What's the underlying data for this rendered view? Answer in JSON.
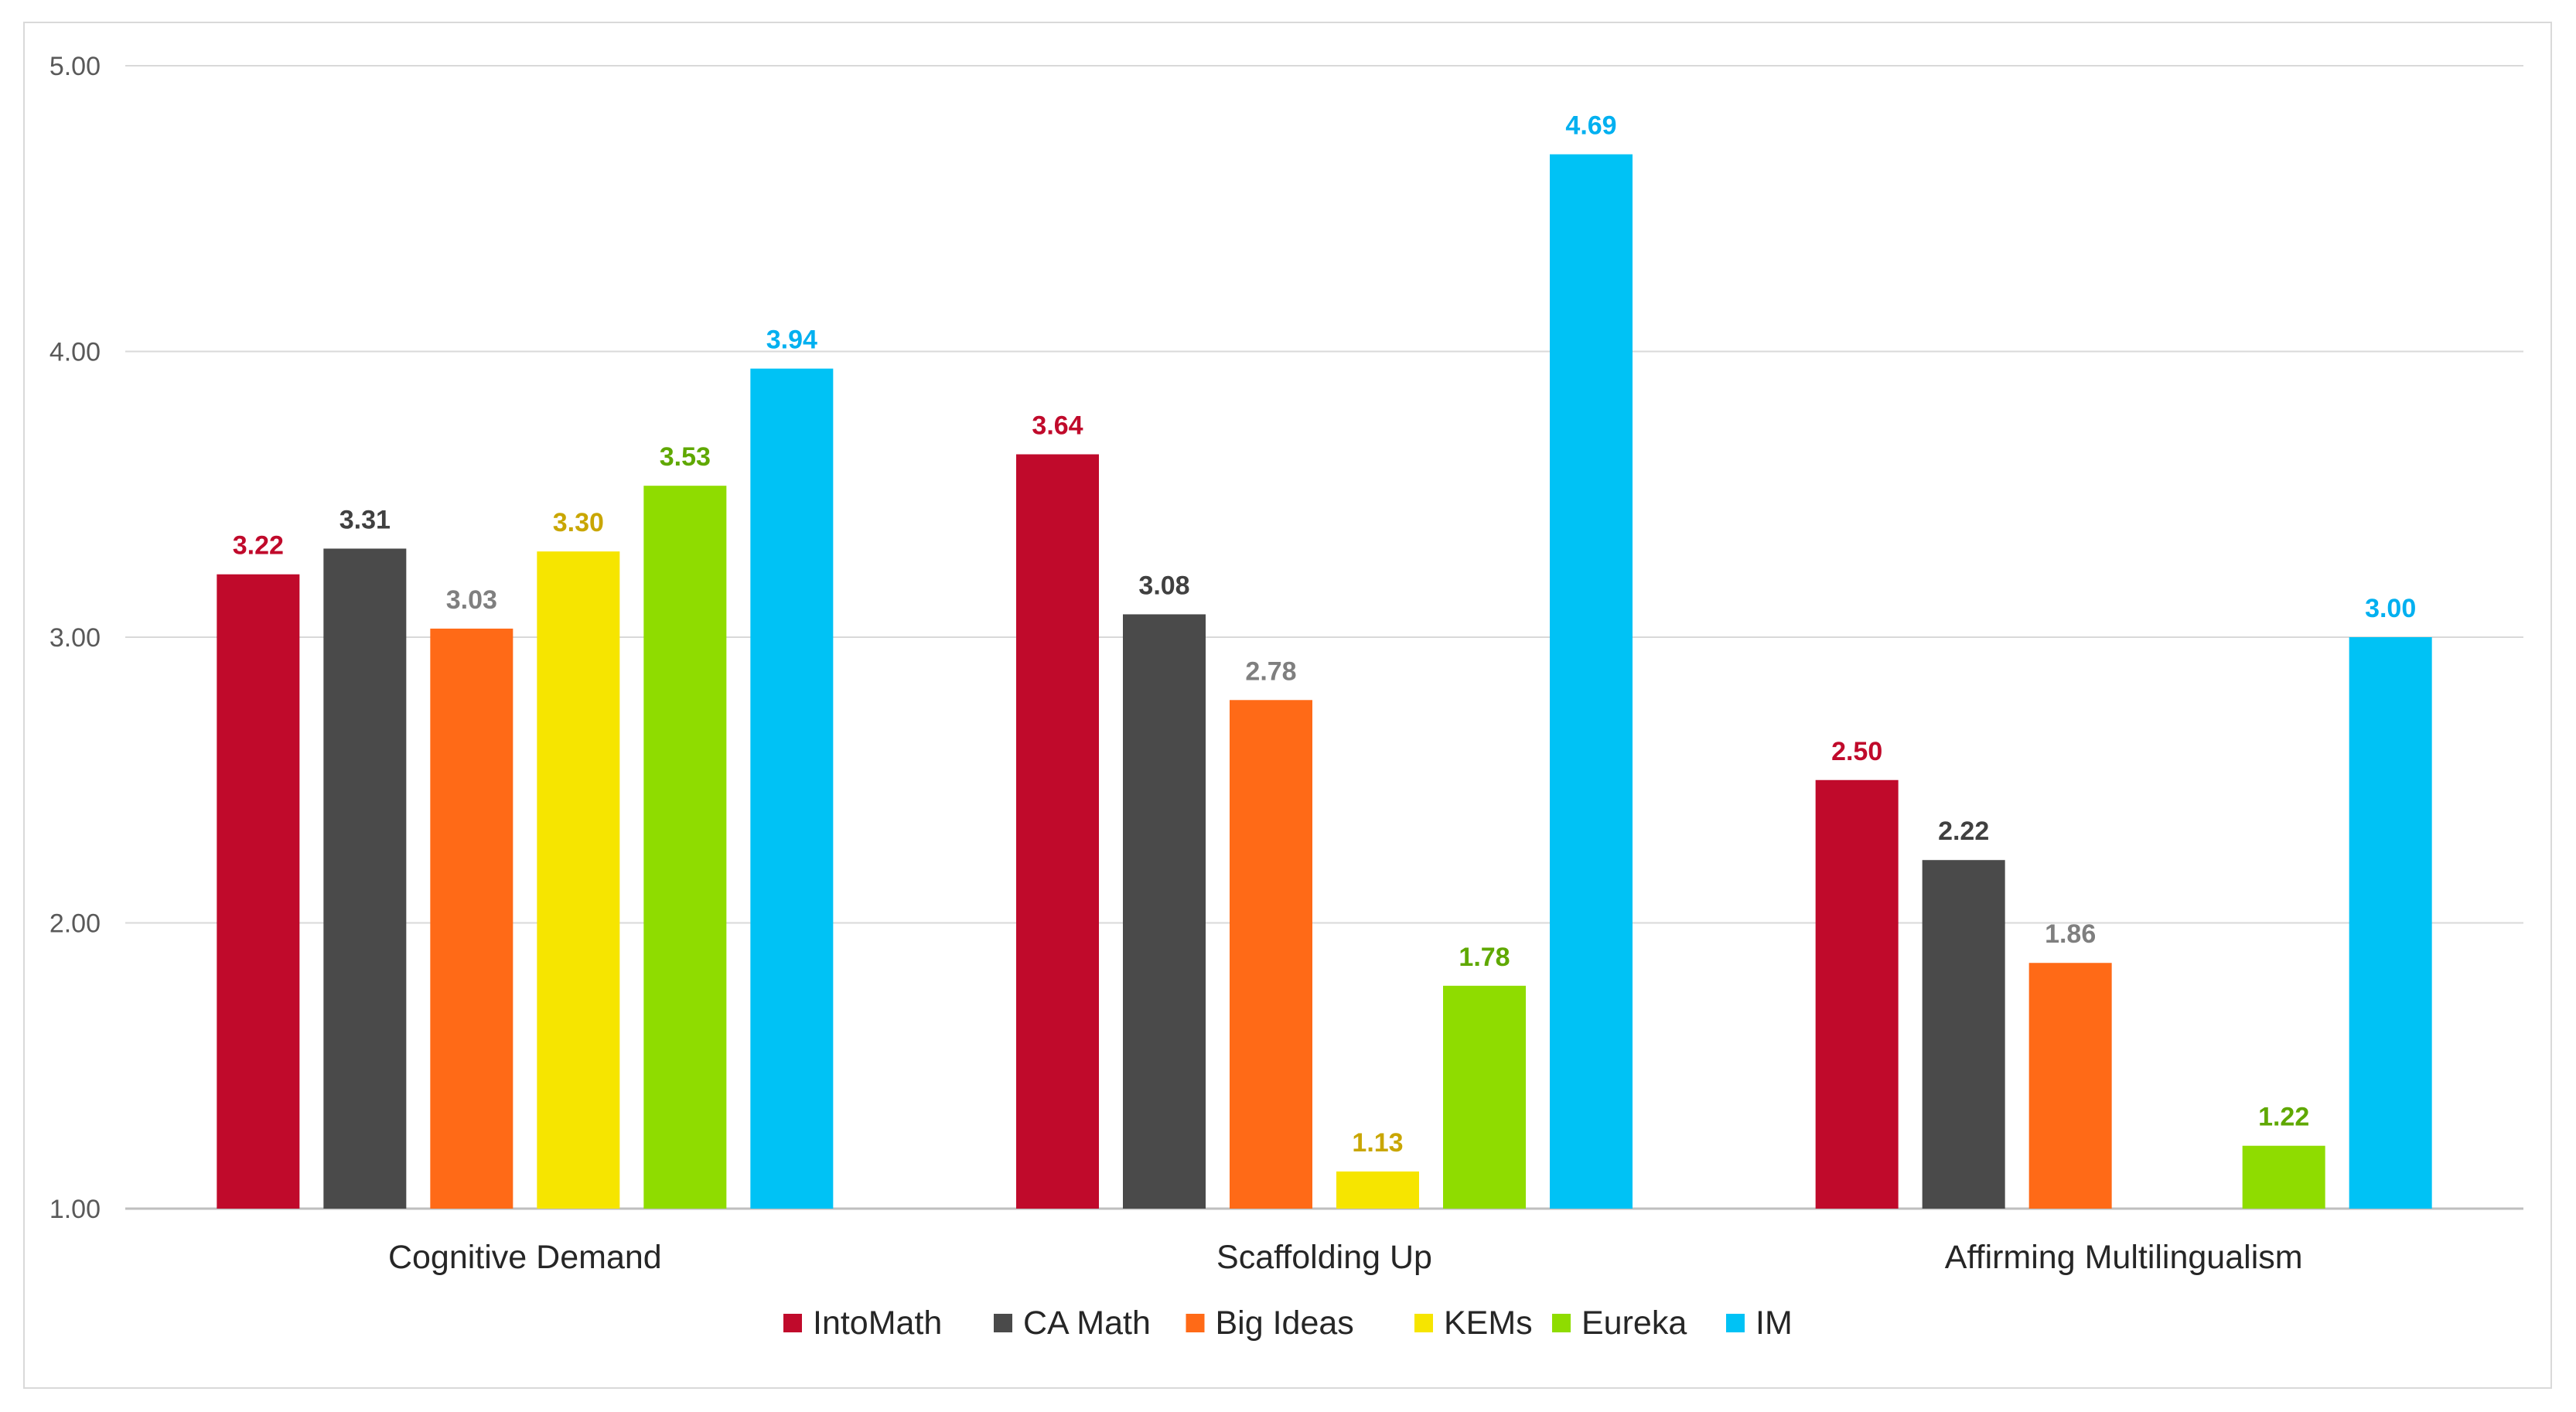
{
  "chart_data": {
    "type": "bar",
    "title": "",
    "xlabel": "",
    "ylabel": "",
    "ylim": [
      1.0,
      5.0
    ],
    "yticks": [
      "1.00",
      "2.00",
      "3.00",
      "4.00",
      "5.00"
    ],
    "grid": true,
    "legend_position": "bottom",
    "categories": [
      "Cognitive Demand",
      "Scaffolding Up",
      "Affirming Multilingualism"
    ],
    "series": [
      {
        "name": "IntoMath",
        "color": "#c00a2b",
        "label_color": "#c00a2b",
        "values": [
          3.22,
          3.64,
          2.5
        ],
        "labels": [
          "3.22",
          "3.64",
          "2.50"
        ]
      },
      {
        "name": "CA Math",
        "color": "#4a4a4a",
        "label_color": "#404040",
        "values": [
          3.31,
          3.08,
          2.22
        ],
        "labels": [
          "3.31",
          "3.08",
          "2.22"
        ]
      },
      {
        "name": "Big Ideas",
        "color": "#ff6a17",
        "label_color": "#7f7f7f",
        "values": [
          3.03,
          2.78,
          1.86
        ],
        "labels": [
          "3.03",
          "2.78",
          "1.86"
        ]
      },
      {
        "name": "KEMs",
        "color": "#f6e500",
        "label_color": "#c9a600",
        "values": [
          3.3,
          1.13,
          null
        ],
        "labels": [
          "3.30",
          "1.13",
          ""
        ]
      },
      {
        "name": "Eureka",
        "color": "#8fdc00",
        "label_color": "#5fa800",
        "values": [
          3.53,
          1.78,
          1.22
        ],
        "labels": [
          "3.53",
          "1.78",
          "1.22"
        ]
      },
      {
        "name": "IM",
        "color": "#00c2f5",
        "label_color": "#00b0f0",
        "values": [
          3.94,
          4.69,
          3.0
        ],
        "labels": [
          "3.94",
          "4.69",
          "3.00"
        ]
      }
    ]
  }
}
